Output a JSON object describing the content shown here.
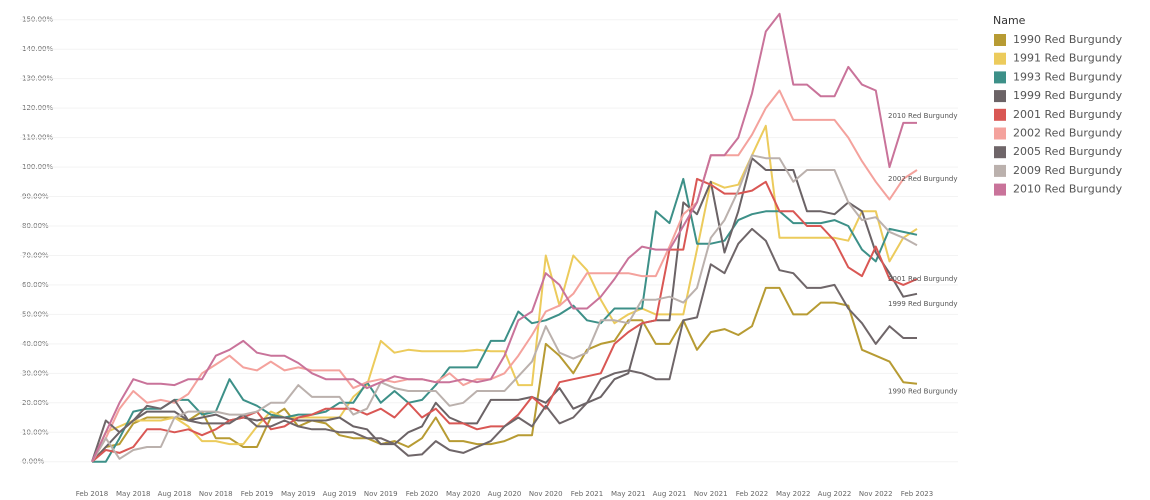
{
  "chart_data": {
    "type": "line",
    "legend_title": "Name",
    "categories": [
      "Feb 2018",
      null,
      null,
      "May 2018",
      null,
      null,
      "Aug 2018",
      null,
      null,
      "Nov 2018",
      null,
      null,
      "Feb 2019",
      null,
      null,
      "May 2019",
      null,
      null,
      "Aug 2019",
      null,
      null,
      "Nov 2019",
      null,
      null,
      "Feb 2020",
      null,
      null,
      "May 2020",
      null,
      null,
      "Aug 2020",
      null,
      null,
      "Nov 2020",
      null,
      null,
      "Feb 2021",
      null,
      null,
      "May 2021",
      null,
      null,
      "Aug 2021",
      null,
      null,
      "Nov 2021",
      null,
      null,
      "Feb 2022",
      null,
      null,
      "May 2022",
      null,
      null,
      "Aug 2022",
      null,
      null,
      "Nov 2022",
      null,
      null,
      "Feb 2023"
    ],
    "ylim": [
      -4.5,
      155
    ],
    "yticks": [
      {
        "value": 0,
        "label": "0.00%"
      },
      {
        "value": 10,
        "label": "10.00%"
      },
      {
        "value": 20,
        "label": "20.00%"
      },
      {
        "value": 30,
        "label": "30.00%"
      },
      {
        "value": 40,
        "label": "40.00%"
      },
      {
        "value": 50,
        "label": "50.00%"
      },
      {
        "value": 60,
        "label": "60.00%"
      },
      {
        "value": 70,
        "label": "70.00%"
      },
      {
        "value": 80,
        "label": "80.00%"
      },
      {
        "value": 90,
        "label": "90.00%"
      },
      {
        "value": 100,
        "label": "100.00%"
      },
      {
        "value": 110,
        "label": "110.00%"
      },
      {
        "value": 120,
        "label": "120.00%"
      },
      {
        "value": 130,
        "label": "130.00%"
      },
      {
        "value": 140,
        "label": "140.00%"
      },
      {
        "value": 150,
        "label": "150.00%"
      }
    ],
    "grid": true,
    "end_labeled_series": [
      8,
      5,
      4,
      3,
      0
    ],
    "series": [
      {
        "name": "1990 Red Burgundy",
        "color": "#b79b33",
        "values": [
          0,
          5,
          6,
          13,
          15,
          15,
          15,
          14,
          17,
          8,
          8,
          5,
          5,
          15,
          18,
          12,
          14,
          13,
          9,
          8,
          8,
          6,
          7,
          5,
          8,
          15,
          7,
          7,
          6,
          6,
          7,
          9,
          9,
          40,
          36,
          30,
          38,
          40,
          41,
          48,
          48,
          40,
          40,
          48,
          38,
          44,
          45,
          43,
          46,
          59,
          59,
          50,
          50,
          54,
          54,
          53,
          38,
          36,
          34,
          27,
          26.5
        ]
      },
      {
        "name": "1991 Red Burgundy",
        "color": "#eccb5c",
        "values": [
          0,
          10,
          12,
          14,
          14,
          14,
          15,
          12,
          7,
          7,
          6,
          6,
          12,
          17,
          15,
          15,
          15,
          15,
          15,
          22,
          26,
          41,
          37,
          38,
          37.5,
          37.5,
          37.5,
          37.5,
          38,
          37.5,
          37.5,
          26,
          26,
          70,
          53,
          70,
          65,
          55,
          47,
          50,
          52,
          50,
          50,
          50,
          72,
          95,
          93,
          94,
          104,
          114,
          76,
          76,
          76,
          76,
          76,
          75,
          85,
          85,
          68,
          76,
          79
        ]
      },
      {
        "name": "1993 Red Burgundy",
        "color": "#3d9088",
        "values": [
          0,
          0,
          8,
          17,
          18,
          18,
          21,
          21,
          16,
          17,
          28,
          21,
          19,
          16,
          15,
          16,
          16,
          17,
          20,
          20,
          27,
          20,
          24,
          20,
          21,
          26,
          32,
          32,
          32,
          41,
          41,
          51,
          47,
          48,
          50,
          53,
          48,
          47,
          52,
          52,
          52,
          85,
          81,
          96,
          74,
          74,
          75,
          82,
          84,
          85,
          85,
          81,
          81,
          81,
          82,
          80,
          72,
          68,
          79,
          78,
          77
        ]
      },
      {
        "name": "1999 Red Burgundy",
        "color": "#6b6366",
        "values": [
          0,
          5,
          10,
          14,
          17,
          17,
          17,
          14,
          15,
          16,
          14,
          15,
          14,
          15,
          15,
          14,
          14,
          14,
          15,
          12,
          11,
          6,
          6,
          10,
          12,
          20,
          15,
          13,
          13,
          21,
          21,
          21,
          22,
          20,
          25,
          18,
          20,
          22,
          28,
          30,
          47,
          48,
          48,
          88,
          84,
          95,
          71,
          85,
          103,
          99,
          99,
          99,
          85,
          85,
          84,
          88,
          85,
          71,
          64,
          56,
          57
        ]
      },
      {
        "name": "2001 Red Burgundy",
        "color": "#d95754",
        "values": [
          0,
          4,
          3,
          5,
          11,
          11,
          10,
          11,
          9,
          11,
          14,
          15,
          17,
          11,
          12,
          15,
          16,
          18,
          18,
          18,
          16,
          18,
          15,
          20,
          15,
          18,
          13,
          13,
          11,
          12,
          12,
          16,
          22,
          18,
          27,
          28,
          29,
          30,
          40,
          44,
          47,
          48,
          72,
          72,
          96,
          94,
          91,
          91,
          92,
          95,
          85,
          85,
          80,
          80,
          75,
          66,
          63,
          73,
          62,
          60,
          62
        ]
      },
      {
        "name": "2002 Red Burgundy",
        "color": "#f4a29d",
        "values": [
          0,
          8,
          18,
          24,
          20,
          21,
          20,
          23,
          30,
          33,
          36,
          32,
          31,
          34,
          31,
          32,
          31,
          31,
          31,
          25,
          27,
          28,
          27,
          28,
          28,
          27,
          30,
          26,
          28,
          28,
          30,
          36,
          43,
          51,
          53,
          57,
          64,
          64,
          64,
          64,
          63,
          63,
          73,
          84,
          88,
          104,
          104,
          104,
          111,
          120,
          126,
          116,
          116,
          116,
          116,
          110,
          102,
          95,
          89,
          96,
          99
        ]
      },
      {
        "name": "2005 Red Burgundy",
        "color": "#6f6669",
        "values": [
          0,
          14,
          10,
          14,
          19,
          18,
          21,
          14,
          13,
          13,
          13,
          16,
          12,
          12,
          14,
          12,
          11,
          11,
          10,
          10,
          8,
          8,
          6,
          2,
          2.5,
          7,
          4,
          3,
          5,
          7,
          12,
          15,
          12,
          19,
          13,
          15,
          20,
          28,
          30,
          31,
          30,
          28,
          28,
          48,
          49,
          67,
          64,
          74,
          79,
          75,
          65,
          64,
          59,
          59,
          60,
          52,
          47,
          40,
          46,
          42,
          42
        ]
      },
      {
        "name": "2009 Red Burgundy",
        "color": "#bbb1ad",
        "values": [
          0,
          8,
          1,
          4,
          5,
          5,
          15,
          17,
          17,
          17,
          16,
          16,
          17,
          20,
          20,
          26,
          22,
          22,
          22,
          16,
          18,
          27,
          25,
          24,
          24,
          24,
          19,
          20,
          24,
          24,
          24,
          29,
          34,
          46,
          37,
          35,
          37,
          48,
          48,
          47,
          55,
          55,
          56,
          54,
          59,
          76,
          82,
          92,
          104,
          103,
          103,
          95,
          99,
          99,
          99,
          88,
          82,
          83,
          78,
          76,
          73.5
        ]
      },
      {
        "name": "2010 Red Burgundy",
        "color": "#c9739a",
        "values": [
          0,
          10,
          20,
          28,
          26.5,
          26.5,
          26,
          28,
          28,
          36,
          38,
          41,
          37,
          36,
          36,
          33.5,
          30,
          28,
          28,
          28,
          25,
          27,
          29,
          28,
          28,
          27,
          27,
          28,
          27,
          28,
          36,
          48,
          51,
          64,
          60,
          52,
          52,
          56,
          62,
          69,
          73,
          72,
          72,
          80,
          88,
          104,
          104,
          110,
          125,
          146,
          152,
          128,
          128,
          124,
          124,
          134,
          128,
          126,
          100,
          115,
          115
        ]
      }
    ]
  }
}
